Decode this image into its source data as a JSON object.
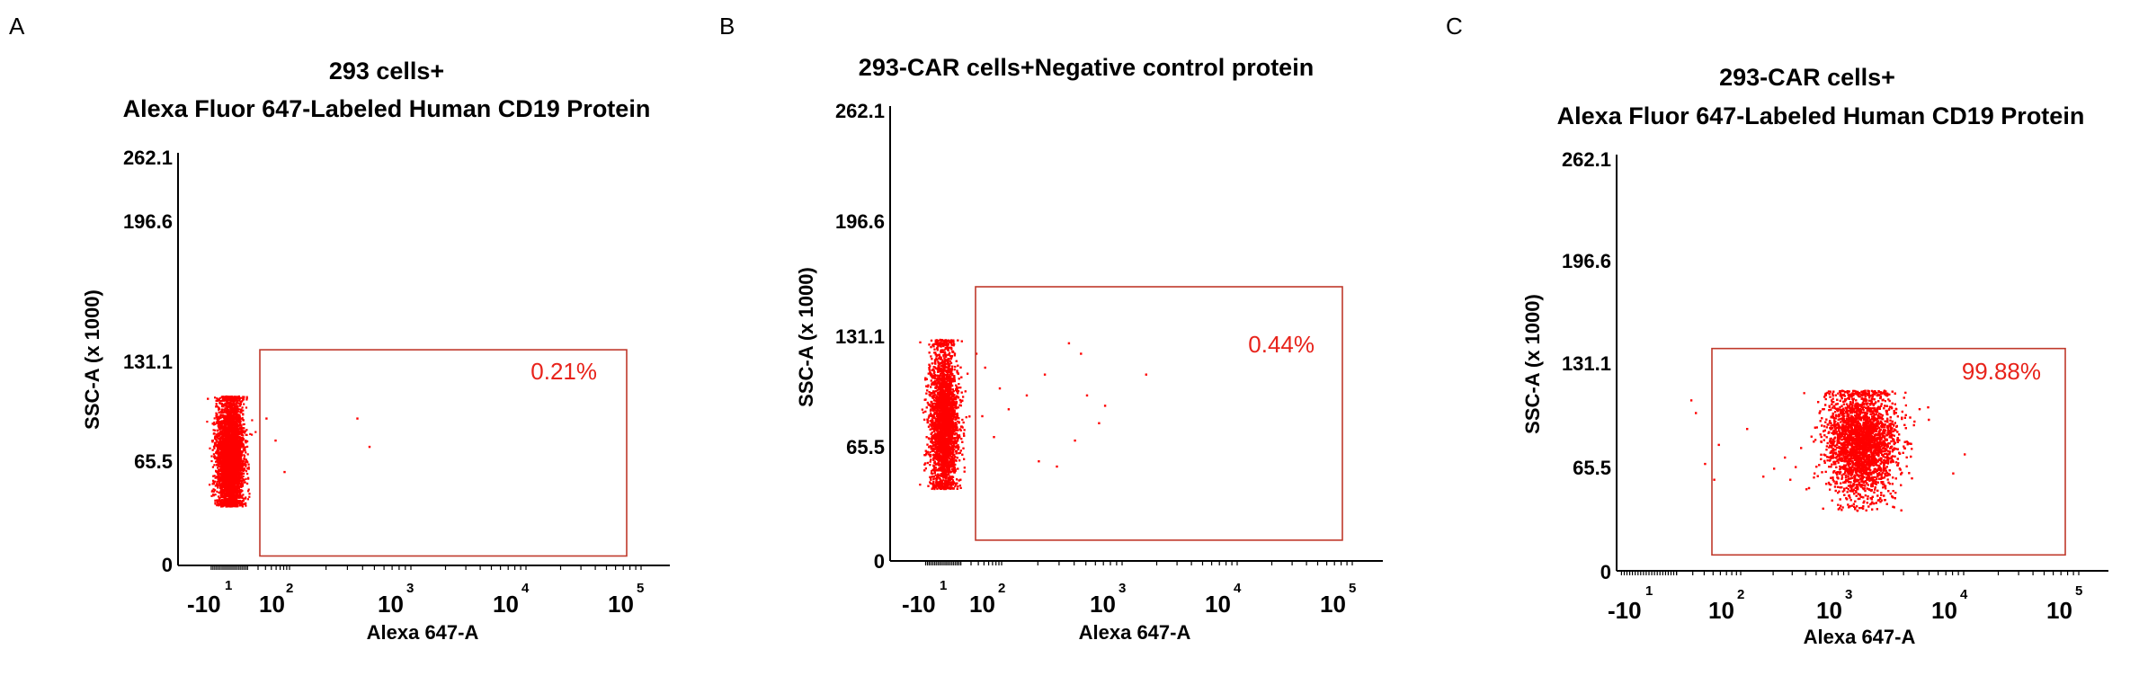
{
  "figure": {
    "panels": [
      {
        "letter": "A",
        "title_lines": [
          "293 cells+",
          "Alexa Fluor 647-Labeled Human CD19 Protein"
        ],
        "gate_label": "0.21%"
      },
      {
        "letter": "B",
        "title_lines": [
          "293-CAR cells+Negative control protein"
        ],
        "gate_label": "0.44%"
      },
      {
        "letter": "C",
        "title_lines": [
          "293-CAR cells+",
          "Alexa Fluor 647-Labeled Human CD19 Protein"
        ],
        "gate_label": "99.88%"
      }
    ]
  },
  "chart_data": [
    {
      "type": "scatter",
      "panel": "A",
      "title": "293 cells+ Alexa Fluor 647-Labeled Human CD19 Protein",
      "xlabel": "Alexa 647-A",
      "ylabel": "SSC-A (x 1000)",
      "x_scale": "log",
      "y_ticks": [
        "0",
        "65.5",
        "131.1",
        "196.6",
        "262.1"
      ],
      "ylim": [
        0,
        262.1
      ],
      "x_ticks": [
        {
          "base": "-10",
          "exp": "1"
        },
        {
          "base": "10",
          "exp": "2"
        },
        {
          "base": "10",
          "exp": "3"
        },
        {
          "base": "10",
          "exp": "4"
        },
        {
          "base": "10",
          "exp": "5"
        }
      ],
      "gate": {
        "x_range": [
          "6×10^1",
          "10^5"
        ],
        "y_range": [
          6,
          137
        ],
        "percent": "0.21%"
      },
      "populations": [
        {
          "name": "main",
          "x_center_decade": 1.0,
          "x_spread_decade": 0.2,
          "y_center": 70,
          "y_spread": 19,
          "y_min": 38,
          "y_max": 108,
          "count": 4500
        },
        {
          "name": "outliers",
          "points": [
            [
              1.6,
              94
            ],
            [
              1.75,
              80
            ],
            [
              2.55,
              94
            ],
            [
              2.65,
              76
            ],
            [
              1.9,
              60
            ]
          ]
        }
      ],
      "grid": false
    },
    {
      "type": "scatter",
      "panel": "B",
      "title": "293-CAR cells+Negative control protein",
      "xlabel": "Alexa 647-A",
      "ylabel": "SSC-A (x 1000)",
      "x_scale": "log",
      "y_ticks": [
        "0",
        "65.5",
        "131.1",
        "196.6",
        "262.1"
      ],
      "ylim": [
        0,
        262.1
      ],
      "x_ticks": [
        {
          "base": "-10",
          "exp": "1"
        },
        {
          "base": "10",
          "exp": "2"
        },
        {
          "base": "10",
          "exp": "3"
        },
        {
          "base": "10",
          "exp": "4"
        },
        {
          "base": "10",
          "exp": "5"
        }
      ],
      "gate": {
        "x_range": [
          "6×10^1",
          "10^5"
        ],
        "y_range": [
          12,
          158
        ],
        "percent": "0.44%"
      },
      "populations": [
        {
          "name": "main",
          "x_center_decade": 1.0,
          "x_spread_decade": 0.22,
          "y_center": 82,
          "y_spread": 22,
          "y_min": 42,
          "y_max": 128,
          "count": 5200
        },
        {
          "name": "outliers",
          "points": [
            [
              1.55,
              120
            ],
            [
              1.7,
              112
            ],
            [
              1.95,
              100
            ],
            [
              2.05,
              88
            ],
            [
              2.2,
              96
            ],
            [
              2.35,
              108
            ],
            [
              2.55,
              126
            ],
            [
              2.65,
              120
            ],
            [
              2.7,
              96
            ],
            [
              2.85,
              90
            ],
            [
              3.2,
              108
            ],
            [
              1.85,
              72
            ],
            [
              2.3,
              58
            ],
            [
              2.45,
              55
            ],
            [
              2.6,
              70
            ],
            [
              2.8,
              80
            ],
            [
              1.65,
              84
            ]
          ]
        }
      ],
      "grid": false
    },
    {
      "type": "scatter",
      "panel": "C",
      "title": "293-CAR cells+ Alexa Fluor 647-Labeled Human CD19 Protein",
      "xlabel": "Alexa 647-A",
      "ylabel": "SSC-A (x 1000)",
      "x_scale": "log",
      "y_ticks": [
        "0",
        "65.5",
        "131.1",
        "196.6",
        "262.1"
      ],
      "ylim": [
        0,
        262.1
      ],
      "x_ticks": [
        {
          "base": "-10",
          "exp": "1"
        },
        {
          "base": "10",
          "exp": "2"
        },
        {
          "base": "10",
          "exp": "3"
        },
        {
          "base": "10",
          "exp": "4"
        },
        {
          "base": "10",
          "exp": "5"
        }
      ],
      "gate": {
        "x_range": [
          "6×10^1",
          "10^5"
        ],
        "y_range": [
          10,
          140
        ],
        "percent": "99.88%"
      },
      "populations": [
        {
          "name": "main",
          "x_center_decade": 3.1,
          "x_spread_decade": 0.28,
          "y_center": 82,
          "y_spread": 17,
          "y_min": 38,
          "y_max": 114,
          "count": 7000
        },
        {
          "name": "outliers",
          "points": [
            [
              1.45,
              108
            ],
            [
              1.5,
              100
            ],
            [
              1.6,
              68
            ],
            [
              1.7,
              58
            ],
            [
              1.75,
              80
            ],
            [
              2.05,
              90
            ],
            [
              2.2,
              60
            ],
            [
              2.3,
              65
            ],
            [
              2.4,
              72
            ],
            [
              2.45,
              58
            ],
            [
              2.5,
              66
            ],
            [
              2.55,
              78
            ],
            [
              2.6,
              52
            ],
            [
              3.9,
              62
            ],
            [
              4.0,
              74
            ]
          ]
        }
      ],
      "grid": false
    }
  ]
}
